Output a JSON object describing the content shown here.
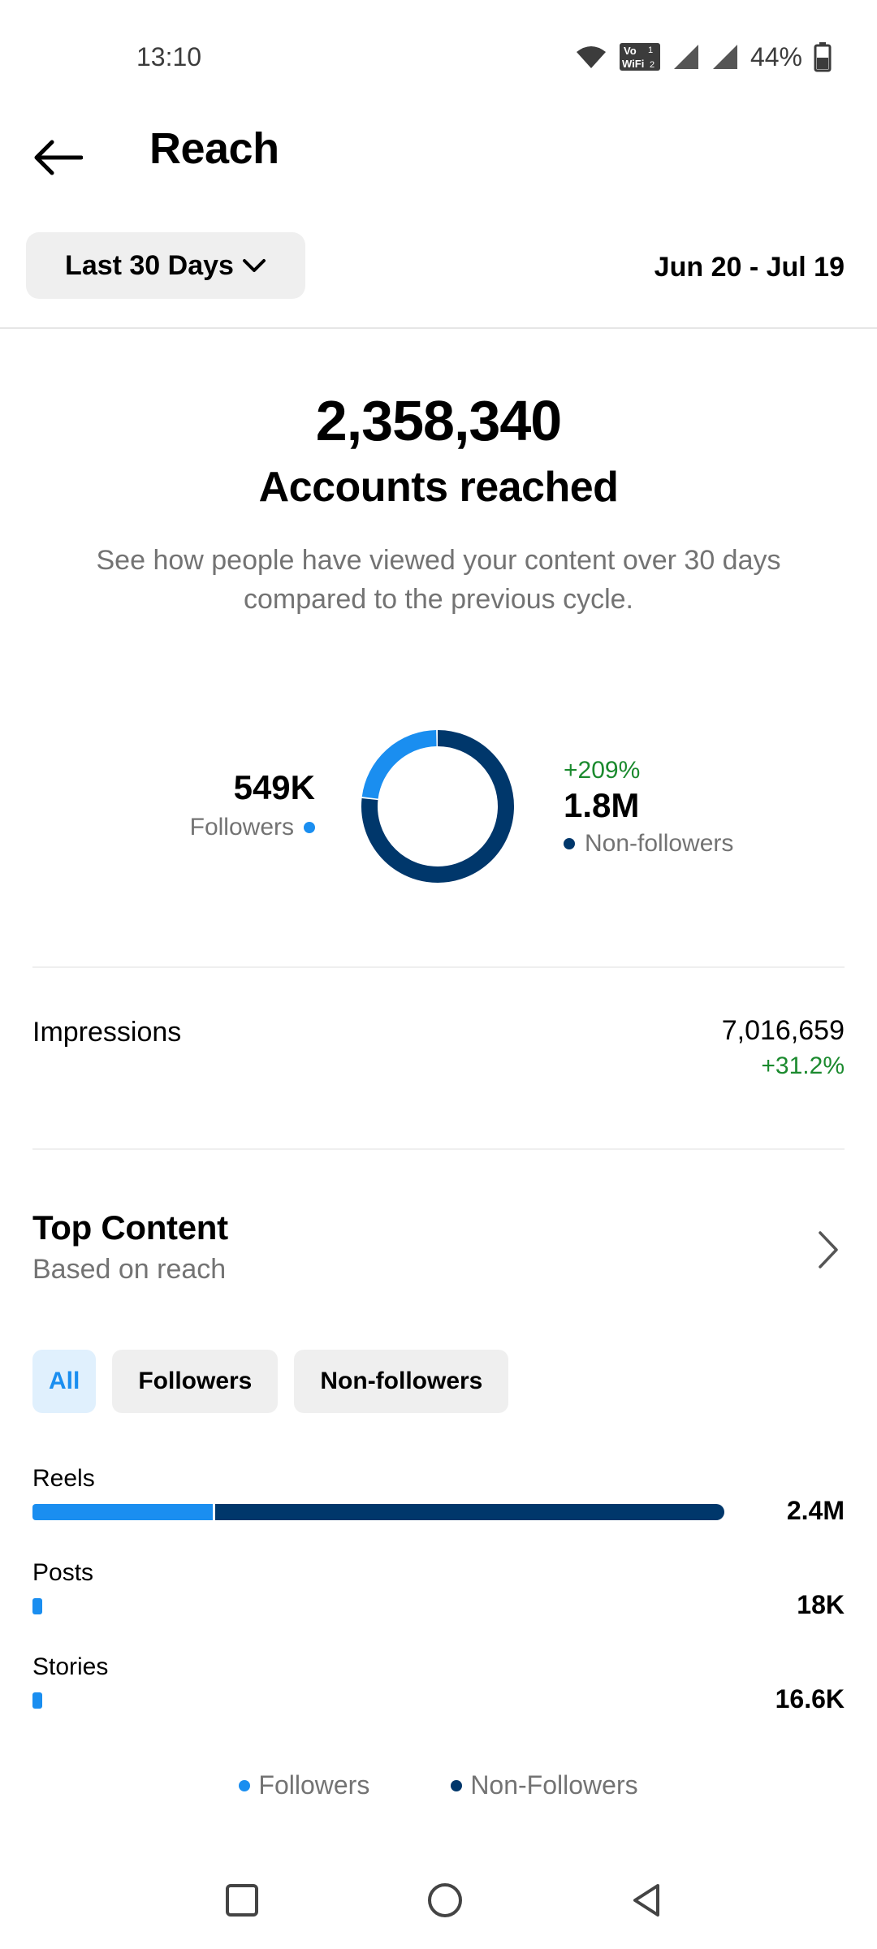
{
  "status_bar": {
    "time": "13:10",
    "battery_text": "44%",
    "icons": [
      "wifi-icon",
      "vowifi-icon",
      "signal-icon",
      "signal-icon",
      "battery-icon"
    ],
    "vowifi_top": "Vo",
    "vowifi_bottom": "WiFi",
    "sim1": "1",
    "sim2": "2"
  },
  "header": {
    "title": "Reach"
  },
  "period": {
    "selected": "Last 30 Days",
    "date_range": "Jun 20 - Jul 19"
  },
  "summary": {
    "accounts_reached": "2,358,340",
    "label": "Accounts reached",
    "description": "See how people have viewed your content over 30 days compared to the previous cycle."
  },
  "breakdown": {
    "followers": {
      "value": "549K",
      "label": "Followers",
      "share": 0.233
    },
    "non_followers": {
      "value": "1.8M",
      "label": "Non-followers",
      "change": "+209%",
      "share": 0.767
    }
  },
  "impressions": {
    "label": "Impressions",
    "value": "7,016,659",
    "change": "+31.2%"
  },
  "top_content": {
    "title": "Top Content",
    "subtitle": "Based on reach",
    "filters": [
      "All",
      "Followers",
      "Non-followers"
    ],
    "active_filter": "All",
    "bars": [
      {
        "label": "Reels",
        "value": "2.4M",
        "fraction_of_max": 1.0,
        "followers_share": 0.26
      },
      {
        "label": "Posts",
        "value": "18K",
        "fraction_of_max": 0.0075,
        "followers_share": 1.0
      },
      {
        "label": "Stories",
        "value": "16.6K",
        "fraction_of_max": 0.0069,
        "followers_share": 1.0
      }
    ],
    "legend": [
      "Followers",
      "Non-Followers"
    ]
  },
  "colors": {
    "followers": "#1a8ef0",
    "non_followers": "#00376b",
    "positive": "#1b8a2e",
    "muted": "#737373"
  },
  "nav_bar": [
    "recents-icon",
    "home-icon",
    "back-triangle-icon"
  ]
}
